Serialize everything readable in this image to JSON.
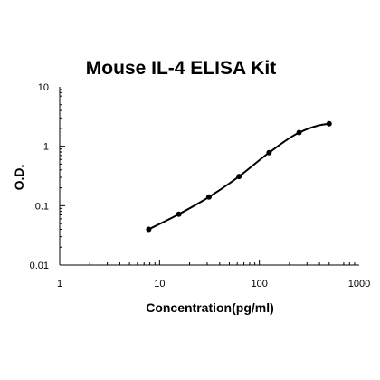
{
  "chart_data": {
    "type": "scatter",
    "title": "Mouse IL-4 ELISA Kit",
    "xlabel": "Concentration(pg/ml)",
    "ylabel": "O.D.",
    "x_scale": "log",
    "y_scale": "log",
    "xlim": [
      1,
      1000
    ],
    "ylim": [
      0.01,
      10
    ],
    "x_ticks": [
      "1",
      "10",
      "100",
      "1000"
    ],
    "y_ticks": [
      "0.01",
      "0.1",
      "1",
      "10"
    ],
    "grid": false,
    "legend": "none",
    "series": [
      {
        "points": [
          {
            "x": 7.8,
            "y": 0.04
          },
          {
            "x": 15.6,
            "y": 0.072
          },
          {
            "x": 31.25,
            "y": 0.14
          },
          {
            "x": 62.5,
            "y": 0.31
          },
          {
            "x": 125,
            "y": 0.78
          },
          {
            "x": 250,
            "y": 1.7
          },
          {
            "x": 500,
            "y": 2.4
          }
        ],
        "fit_curve": true,
        "color": "#000000"
      }
    ]
  }
}
